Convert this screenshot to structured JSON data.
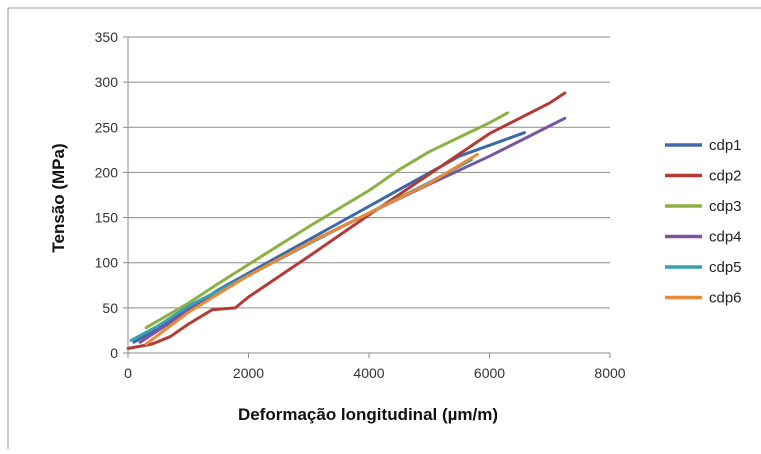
{
  "chart_data": {
    "type": "line",
    "title": "",
    "xlabel": "Deformação longitudinal  (µm/m)",
    "ylabel": "Tensão (MPa)",
    "xlim": [
      0,
      8000
    ],
    "ylim": [
      0,
      350
    ],
    "x_ticks": [
      0,
      2000,
      4000,
      6000,
      8000
    ],
    "y_ticks": [
      0,
      50,
      100,
      150,
      200,
      250,
      300,
      350
    ],
    "grid": "horizontal",
    "legend_position": "right",
    "series": [
      {
        "name": "cdp1",
        "color": "#3d6aa6",
        "x": [
          100,
          600,
          1500,
          2500,
          3500,
          4500,
          5500,
          6580
        ],
        "y": [
          12,
          32,
          70,
          107,
          144,
          181,
          218,
          244
        ]
      },
      {
        "name": "cdp2",
        "color": "#b23b36",
        "x": [
          0,
          400,
          700,
          1000,
          1400,
          1780,
          2000,
          3000,
          4000,
          5000,
          6000,
          7000,
          7250
        ],
        "y": [
          5,
          10,
          18,
          32,
          48,
          50,
          62,
          107,
          153,
          198,
          243,
          277,
          288
        ]
      },
      {
        "name": "cdp3",
        "color": "#8bb144",
        "x": [
          300,
          1000,
          1500,
          2000,
          3000,
          4000,
          4500,
          5000,
          6000,
          6300
        ],
        "y": [
          28,
          55,
          77,
          98,
          140,
          180,
          203,
          223,
          255,
          266
        ]
      },
      {
        "name": "cdp4",
        "color": "#7a549e",
        "x": [
          200,
          1000,
          2000,
          3000,
          4000,
          5000,
          6000,
          7250
        ],
        "y": [
          12,
          47,
          86,
          122,
          155,
          187,
          218,
          260
        ]
      },
      {
        "name": "cdp5",
        "color": "#3aa1b2",
        "x": [
          50,
          500,
          1000,
          2000,
          3000,
          4000,
          5000,
          5700
        ],
        "y": [
          14,
          30,
          52,
          86,
          121,
          155,
          189,
          214
        ]
      },
      {
        "name": "cdp6",
        "color": "#e98a38",
        "x": [
          300,
          1000,
          2000,
          3000,
          4000,
          5000,
          5800
        ],
        "y": [
          10,
          45,
          86,
          122,
          155,
          188,
          220
        ]
      }
    ]
  }
}
